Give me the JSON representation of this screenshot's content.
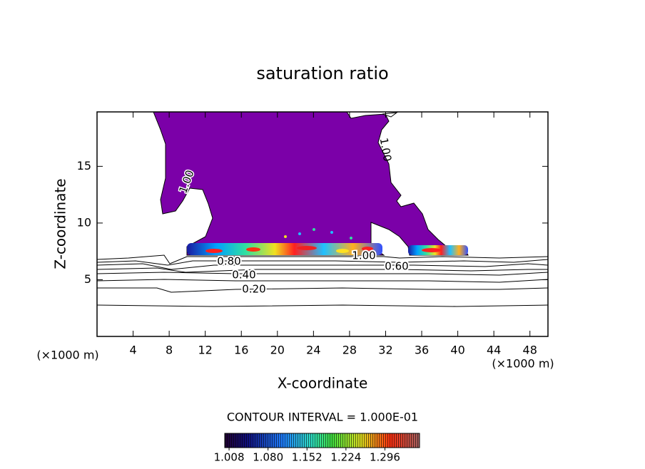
{
  "chart_data": {
    "type": "contour",
    "title": "saturation ratio",
    "x_label": "X-coordinate",
    "y_label": "Z-coordinate",
    "x_unit_labels": [
      "(×1000 m)",
      "(×1000 m)"
    ],
    "xlim": [
      0,
      50
    ],
    "xticks": [
      4,
      8,
      12,
      16,
      20,
      24,
      28,
      32,
      36,
      40,
      44,
      48
    ],
    "ylim": [
      0,
      19.8
    ],
    "yticks": [
      5,
      10,
      15
    ],
    "contour_labels": [
      "1.00",
      "1.00",
      "0.80",
      "0.40",
      "0.20",
      "1.00",
      "0.60"
    ],
    "contour_interval_label": "CONTOUR INTERVAL = 1.000E-01",
    "colorbar": {
      "clim": [
        1.0,
        1.36
      ],
      "ticks": [
        1.008,
        {
          "value": 1.08,
          "label": "1.080"
        },
        1.152,
        1.224,
        1.296
      ]
    }
  }
}
